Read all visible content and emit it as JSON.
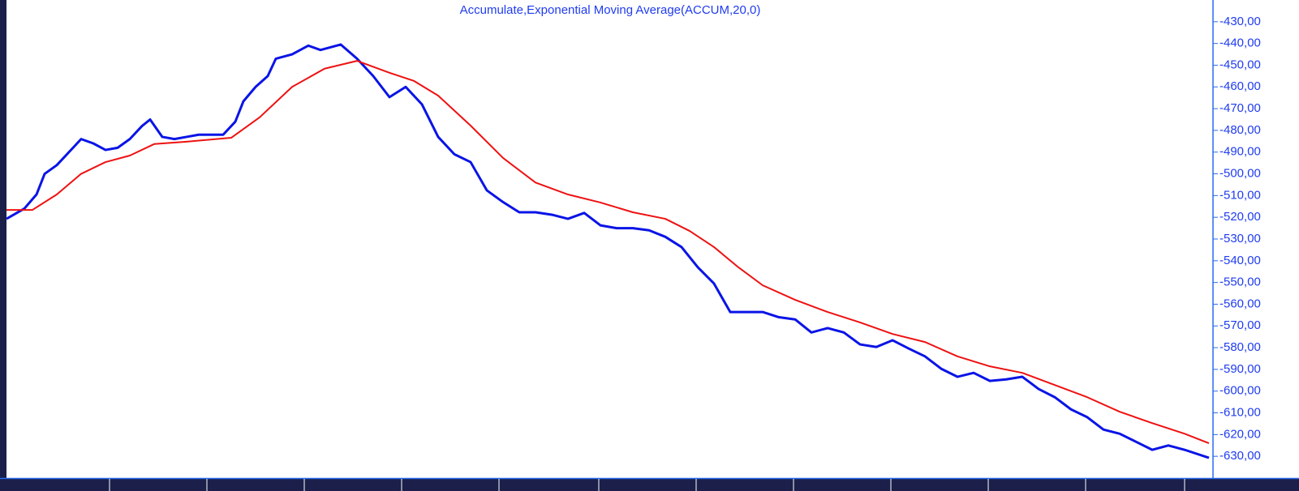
{
  "chart_data": {
    "type": "line",
    "title": "Accumulate,Exponential Moving Average(ACCUM,20,0)",
    "xlim": [
      0,
      1487
    ],
    "ylim": [
      -640,
      -420
    ],
    "yticks": [
      {
        "value": -430,
        "label": "-430,00"
      },
      {
        "value": -440,
        "label": "-440,00"
      },
      {
        "value": -450,
        "label": "-450,00"
      },
      {
        "value": -460,
        "label": "-460,00"
      },
      {
        "value": -470,
        "label": "-470,00"
      },
      {
        "value": -480,
        "label": "-480,00"
      },
      {
        "value": -490,
        "label": "-490,00"
      },
      {
        "value": -500,
        "label": "-500,00"
      },
      {
        "value": -510,
        "label": "-510,00"
      },
      {
        "value": -520,
        "label": "-520,00"
      },
      {
        "value": -530,
        "label": "-530,00"
      },
      {
        "value": -540,
        "label": "-540,00"
      },
      {
        "value": -550,
        "label": "-550,00"
      },
      {
        "value": -560,
        "label": "-560,00"
      },
      {
        "value": -570,
        "label": "-570,00"
      },
      {
        "value": -580,
        "label": "-580,00"
      },
      {
        "value": -590,
        "label": "-590,00"
      },
      {
        "value": -600,
        "label": "-600,00"
      },
      {
        "value": -610,
        "label": "-610,00"
      },
      {
        "value": -620,
        "label": "-620,00"
      },
      {
        "value": -630,
        "label": "-630,00"
      }
    ],
    "series": [
      {
        "color": "#0a14e6",
        "x": [
          0,
          22,
          37,
          47,
          62,
          77,
          92,
          107,
          122,
          137,
          152,
          167,
          177,
          192,
          207,
          222,
          237,
          252,
          267,
          282,
          292,
          307,
          322,
          332,
          352,
          372,
          387,
          412,
          432,
          452,
          472,
          492,
          512,
          532,
          552,
          572,
          592,
          612,
          632,
          652,
          672,
          692,
          712,
          732,
          752,
          772,
          792,
          812,
          832,
          852,
          872,
          892,
          912,
          932,
          952,
          972,
          992,
          1012,
          1032,
          1052,
          1072,
          1092,
          1112,
          1132,
          1152,
          1172,
          1192,
          1212,
          1232,
          1252,
          1272,
          1292,
          1312,
          1332,
          1352,
          1372,
          1392,
          1412,
          1432,
          1452,
          1482
        ],
        "values": [
          -520.7,
          -516,
          -509.5,
          -500,
          -496,
          -490,
          -484,
          -486,
          -489,
          -488,
          -484,
          -478,
          -475,
          -483,
          -484,
          -483,
          -482,
          -482,
          -482,
          -476,
          -466.6,
          -460,
          -455,
          -447,
          -445,
          -441,
          -443,
          -440.5,
          -447,
          -455,
          -464.7,
          -460,
          -468,
          -483,
          -491,
          -494.6,
          -507.6,
          -513,
          -517.7,
          -517.7,
          -518.8,
          -520.7,
          -518,
          -523.7,
          -525,
          -525,
          -526,
          -529,
          -533.7,
          -543,
          -550.5,
          -563.6,
          -563.6,
          -563.6,
          -566,
          -567,
          -573,
          -571,
          -573,
          -578.5,
          -579.7,
          -576.6,
          -580.4,
          -584,
          -589.7,
          -593.4,
          -591.6,
          -595.3,
          -594.6,
          -593.4,
          -599,
          -602.8,
          -608.4,
          -612,
          -617.7,
          -619.6,
          -623.3,
          -627,
          -625,
          -627,
          -630.7
        ]
      },
      {
        "color": "#ee1111",
        "x": [
          0,
          32,
          62,
          92,
          122,
          152,
          182,
          222,
          277,
          312,
          352,
          392,
          432,
          472,
          502,
          532,
          572,
          612,
          652,
          692,
          732,
          772,
          812,
          842,
          872,
          902,
          932,
          972,
          1012,
          1052,
          1092,
          1132,
          1172,
          1212,
          1252,
          1292,
          1332,
          1372,
          1412,
          1452,
          1482
        ],
        "values": [
          -516.6,
          -516.6,
          -509.5,
          -500,
          -494.6,
          -491.6,
          -486.3,
          -485.2,
          -483.4,
          -474,
          -460,
          -451.6,
          -448,
          -453.5,
          -457.2,
          -464,
          -477.8,
          -492.7,
          -504,
          -509.5,
          -513.2,
          -517.7,
          -520.7,
          -526.3,
          -533.7,
          -543,
          -551.3,
          -558,
          -563.6,
          -568.4,
          -573.7,
          -577.4,
          -584,
          -588.6,
          -591.6,
          -597.2,
          -602.8,
          -609.5,
          -614.7,
          -619.6,
          -624
        ]
      }
    ]
  }
}
